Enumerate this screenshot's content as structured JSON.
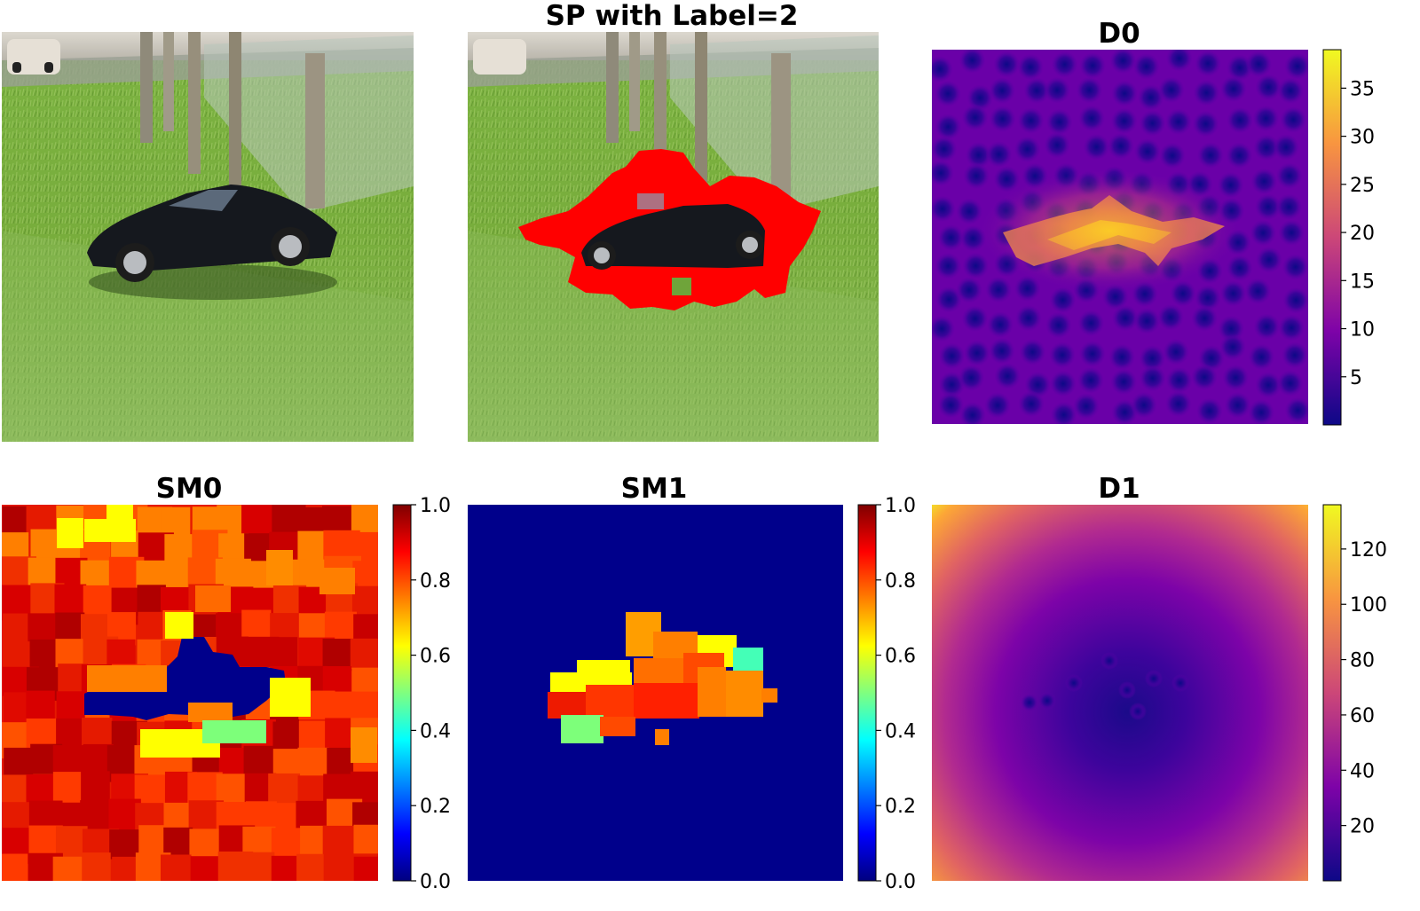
{
  "figure": {
    "panels": [
      {
        "id": "original",
        "title": ""
      },
      {
        "id": "sp",
        "title": "SP with Label=2"
      },
      {
        "id": "d0",
        "title": "D0"
      },
      {
        "id": "sm0",
        "title": "SM0"
      },
      {
        "id": "sm1",
        "title": "SM1"
      },
      {
        "id": "d1",
        "title": "D1"
      }
    ]
  },
  "chart_data": [
    {
      "type": "heatmap",
      "title": "D0",
      "colormap": "plasma",
      "colorbar_range": [
        0,
        39
      ],
      "colorbar_ticks": [
        "5",
        "10",
        "15",
        "20",
        "25",
        "30",
        "35"
      ]
    },
    {
      "type": "heatmap",
      "title": "SM0",
      "colormap": "jet",
      "colorbar_range": [
        0.0,
        1.0
      ],
      "colorbar_ticks": [
        "0.0",
        "0.2",
        "0.4",
        "0.6",
        "0.8",
        "1.0"
      ]
    },
    {
      "type": "heatmap",
      "title": "SM1",
      "colormap": "jet",
      "colorbar_range": [
        0.0,
        1.0
      ],
      "colorbar_ticks": [
        "0.0",
        "0.2",
        "0.4",
        "0.6",
        "0.8",
        "1.0"
      ]
    },
    {
      "type": "heatmap",
      "title": "D1",
      "colormap": "plasma",
      "colorbar_range": [
        0,
        136
      ],
      "colorbar_ticks": [
        "20",
        "40",
        "60",
        "80",
        "100",
        "120"
      ]
    }
  ],
  "colors": {
    "superpixel_highlight": "#ff0000",
    "grass": "#6fa43a",
    "car": "#15181e",
    "sm_background": "#00008b"
  }
}
